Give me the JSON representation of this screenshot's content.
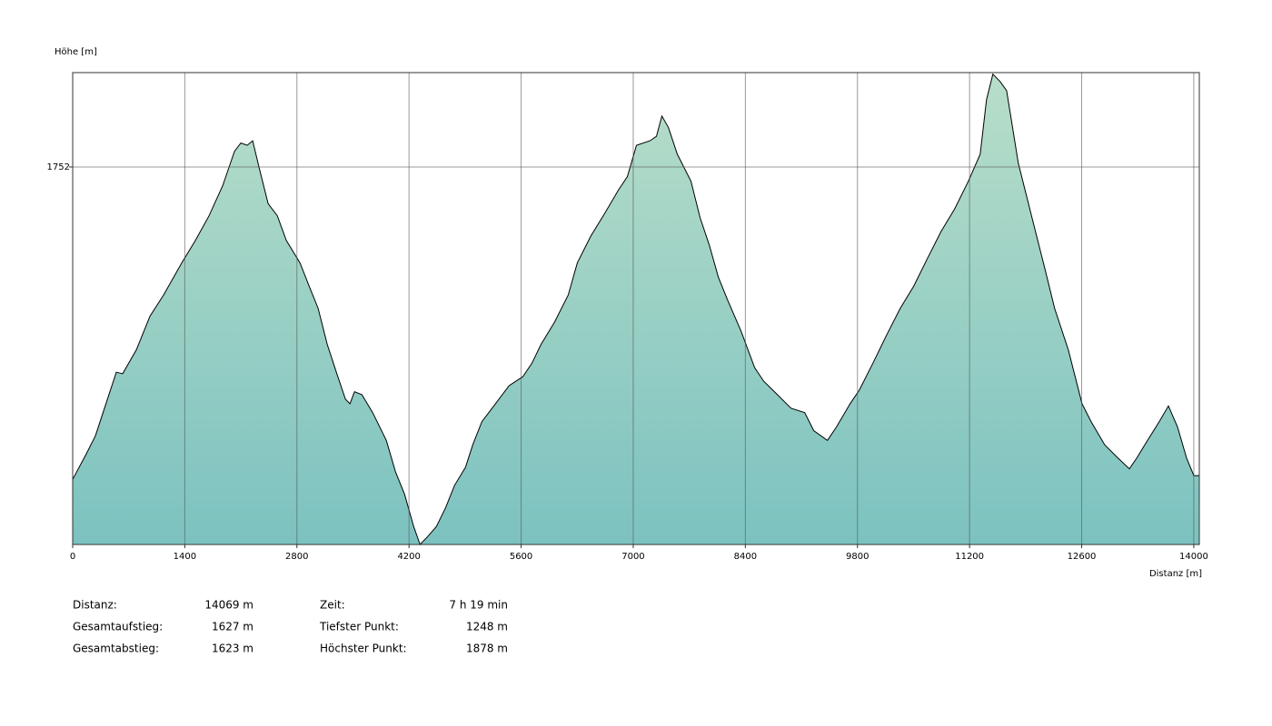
{
  "chart_data": {
    "type": "area",
    "ylabel": "Höhe [m]",
    "xlabel": "Distanz [m]",
    "xlim": [
      0,
      14069
    ],
    "xticks": [
      0,
      1400,
      2800,
      4200,
      5600,
      7000,
      8400,
      9800,
      11200,
      12600,
      14000
    ],
    "ylim": [
      1248,
      1878
    ],
    "yticks": [
      1752
    ],
    "grid": true,
    "color": "#7cc2c0",
    "line_color": "#000000",
    "x": [
      0,
      170,
      284,
      397,
      545,
      624,
      795,
      965,
      1135,
      1362,
      1533,
      1703,
      1873,
      2021,
      2100,
      2180,
      2248,
      2328,
      2441,
      2555,
      2668,
      2839,
      2952,
      3066,
      3179,
      3293,
      3406,
      3463,
      3520,
      3611,
      3747,
      3917,
      4031,
      4145,
      4258,
      4338,
      4428,
      4542,
      4656,
      4769,
      4905,
      4996,
      5110,
      5280,
      5450,
      5621,
      5734,
      5848,
      6018,
      6188,
      6302,
      6472,
      6643,
      6813,
      6927,
      7040,
      7210,
      7290,
      7358,
      7438,
      7551,
      7721,
      7835,
      7949,
      8062,
      8176,
      8346,
      8516,
      8630,
      8800,
      8970,
      9141,
      9254,
      9425,
      9538,
      9709,
      9822,
      9992,
      10162,
      10333,
      10503,
      10674,
      10844,
      11014,
      11185,
      11332,
      11412,
      11491,
      11582,
      11662,
      11809,
      11980,
      12150,
      12263,
      12433,
      12604,
      12718,
      12888,
      13058,
      13195,
      13285,
      13422,
      13569,
      13683,
      13797,
      13911,
      14001,
      14069
    ],
    "values": [
      1335,
      1369,
      1393,
      1430,
      1478,
      1476,
      1508,
      1553,
      1581,
      1624,
      1654,
      1687,
      1727,
      1773,
      1784,
      1781,
      1787,
      1751,
      1703,
      1687,
      1654,
      1624,
      1593,
      1563,
      1515,
      1478,
      1442,
      1436,
      1452,
      1448,
      1424,
      1387,
      1345,
      1315,
      1272,
      1248,
      1258,
      1272,
      1297,
      1327,
      1351,
      1381,
      1412,
      1436,
      1460,
      1472,
      1490,
      1515,
      1545,
      1581,
      1624,
      1660,
      1690,
      1721,
      1739,
      1781,
      1787,
      1793,
      1820,
      1805,
      1769,
      1733,
      1684,
      1648,
      1605,
      1575,
      1533,
      1484,
      1466,
      1448,
      1430,
      1424,
      1400,
      1387,
      1405,
      1436,
      1454,
      1490,
      1527,
      1563,
      1593,
      1630,
      1666,
      1696,
      1733,
      1769,
      1842,
      1876,
      1866,
      1854,
      1757,
      1684,
      1612,
      1563,
      1508,
      1436,
      1412,
      1381,
      1363,
      1349,
      1363,
      1387,
      1412,
      1433,
      1405,
      1363,
      1340,
      1340
    ]
  },
  "summary": [
    [
      {
        "label": "Distanz:",
        "value": "14069 m"
      },
      {
        "label": "Zeit:",
        "value": "7 h 19 min"
      }
    ],
    [
      {
        "label": "Gesamtaufstieg:",
        "value": "1627 m"
      },
      {
        "label": "Tiefster Punkt:",
        "value": "1248 m"
      }
    ],
    [
      {
        "label": "Gesamtabstieg:",
        "value": "1623 m"
      },
      {
        "label": "Höchster Punkt:",
        "value": "1878 m"
      }
    ]
  ]
}
